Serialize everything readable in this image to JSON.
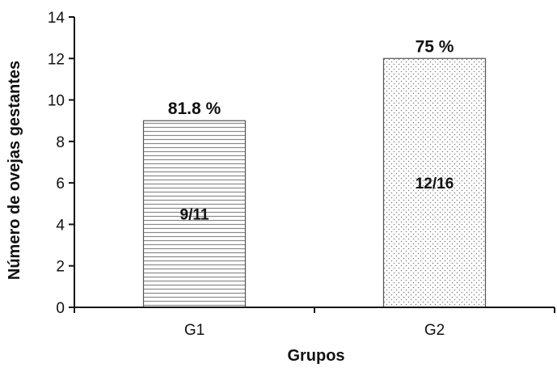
{
  "chart_data": {
    "type": "bar",
    "categories": [
      "G1",
      "G2"
    ],
    "values": [
      9,
      12
    ],
    "top_labels": [
      "81.8 %",
      "75 %"
    ],
    "inner_labels": [
      "9/11",
      "12/16"
    ],
    "patterns": [
      "horizontal-lines",
      "dots"
    ],
    "xlabel": "Grupos",
    "ylabel": "Número de ovejas gestantes",
    "ylim": [
      0,
      14
    ],
    "yticks": [
      0,
      2,
      4,
      6,
      8,
      10,
      12,
      14
    ],
    "grid": false,
    "legend": "none"
  }
}
